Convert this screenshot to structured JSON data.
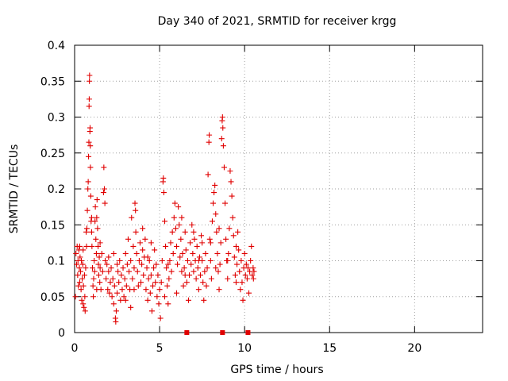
{
  "chart_data": {
    "type": "scatter",
    "title": "Day 340 of 2021, SRMTID for receiver krgg",
    "xlabel": "GPS time / hours",
    "ylabel": "SRMTID / TECUs",
    "xlim": [
      0,
      24
    ],
    "ylim": [
      0,
      0.4
    ],
    "x_ticks": [
      0,
      5,
      10,
      15,
      20
    ],
    "y_ticks": [
      0,
      0.05,
      0.1,
      0.15,
      0.2,
      0.25,
      0.3,
      0.35,
      0.4
    ],
    "x_tick_labels": [
      "0",
      "5",
      "10",
      "15",
      "20"
    ],
    "y_tick_labels": [
      "0",
      "0.05",
      "0.1",
      "0.15",
      "0.2",
      "0.25",
      "0.3",
      "0.35",
      "0.4"
    ],
    "grid": true,
    "marker": "plus",
    "color": "#e00000",
    "series": [
      {
        "name": "SRMTID",
        "points": [
          [
            0.05,
            0.05
          ],
          [
            0.08,
            0.11
          ],
          [
            0.12,
            0.095
          ],
          [
            0.15,
            0.12
          ],
          [
            0.18,
            0.08
          ],
          [
            0.2,
            0.1
          ],
          [
            0.22,
            0.065
          ],
          [
            0.25,
            0.115
          ],
          [
            0.28,
            0.09
          ],
          [
            0.3,
            0.07
          ],
          [
            0.32,
            0.105
          ],
          [
            0.35,
            0.085
          ],
          [
            0.38,
            0.06
          ],
          [
            0.4,
            0.1
          ],
          [
            0.42,
            0.045
          ],
          [
            0.45,
            0.075
          ],
          [
            0.48,
            0.095
          ],
          [
            0.5,
            0.04
          ],
          [
            0.52,
            0.065
          ],
          [
            0.55,
            0.035
          ],
          [
            0.58,
            0.08
          ],
          [
            0.6,
            0.05
          ],
          [
            0.62,
            0.03
          ],
          [
            0.65,
            0.09
          ],
          [
            0.68,
            0.14
          ],
          [
            0.7,
            0.12
          ],
          [
            0.72,
            0.145
          ],
          [
            0.75,
            0.17
          ],
          [
            0.78,
            0.2
          ],
          [
            0.8,
            0.21
          ],
          [
            0.82,
            0.245
          ],
          [
            0.84,
            0.265
          ],
          [
            0.85,
            0.315
          ],
          [
            0.86,
            0.325
          ],
          [
            0.87,
            0.35
          ],
          [
            0.88,
            0.358
          ],
          [
            0.9,
            0.28
          ],
          [
            0.91,
            0.285
          ],
          [
            0.92,
            0.26
          ],
          [
            0.93,
            0.23
          ],
          [
            0.95,
            0.19
          ],
          [
            0.97,
            0.155
          ],
          [
            1.0,
            0.14
          ],
          [
            1.02,
            0.12
          ],
          [
            1.05,
            0.09
          ],
          [
            1.08,
            0.065
          ],
          [
            1.1,
            0.05
          ],
          [
            1.12,
            0.075
          ],
          [
            1.15,
            0.1
          ],
          [
            1.18,
            0.085
          ],
          [
            1.2,
            0.155
          ],
          [
            1.22,
            0.175
          ],
          [
            1.25,
            0.13
          ],
          [
            1.28,
            0.11
          ],
          [
            1.3,
            0.16
          ],
          [
            1.32,
            0.185
          ],
          [
            1.35,
            0.145
          ],
          [
            1.38,
            0.12
          ],
          [
            1.4,
            0.095
          ],
          [
            1.42,
            0.08
          ],
          [
            1.45,
            0.105
          ],
          [
            1.48,
            0.07
          ],
          [
            1.5,
            0.09
          ],
          [
            1.55,
            0.06
          ],
          [
            1.6,
            0.11
          ],
          [
            1.65,
            0.085
          ],
          [
            1.7,
            0.195
          ],
          [
            1.72,
            0.23
          ],
          [
            1.75,
            0.2
          ],
          [
            1.78,
            0.18
          ],
          [
            1.8,
            0.1
          ],
          [
            1.85,
            0.075
          ],
          [
            1.9,
            0.095
          ],
          [
            1.95,
            0.06
          ],
          [
            2.0,
            0.085
          ],
          [
            2.05,
            0.055
          ],
          [
            2.1,
            0.07
          ],
          [
            2.15,
            0.09
          ],
          [
            2.2,
            0.05
          ],
          [
            2.25,
            0.075
          ],
          [
            2.3,
            0.04
          ],
          [
            2.35,
            0.065
          ],
          [
            2.4,
            0.02
          ],
          [
            2.42,
            0.015
          ],
          [
            2.45,
            0.03
          ],
          [
            2.5,
            0.055
          ],
          [
            2.55,
            0.085
          ],
          [
            2.6,
            0.07
          ],
          [
            2.65,
            0.1
          ],
          [
            2.7,
            0.045
          ],
          [
            2.75,
            0.08
          ],
          [
            2.8,
            0.06
          ],
          [
            2.85,
            0.09
          ],
          [
            2.9,
            0.05
          ],
          [
            2.95,
            0.075
          ],
          [
            3.0,
            0.11
          ],
          [
            3.05,
            0.065
          ],
          [
            3.1,
            0.095
          ],
          [
            3.15,
            0.13
          ],
          [
            3.2,
            0.085
          ],
          [
            3.25,
            0.06
          ],
          [
            3.3,
            0.1
          ],
          [
            3.35,
            0.16
          ],
          [
            3.4,
            0.075
          ],
          [
            3.45,
            0.12
          ],
          [
            3.5,
            0.09
          ],
          [
            3.55,
            0.18
          ],
          [
            3.58,
            0.17
          ],
          [
            3.6,
            0.14
          ],
          [
            3.65,
            0.11
          ],
          [
            3.7,
            0.085
          ],
          [
            3.75,
            0.065
          ],
          [
            3.8,
            0.1
          ],
          [
            3.85,
            0.125
          ],
          [
            3.9,
            0.07
          ],
          [
            3.95,
            0.095
          ],
          [
            4.0,
            0.115
          ],
          [
            4.05,
            0.08
          ],
          [
            4.1,
            0.105
          ],
          [
            4.15,
            0.13
          ],
          [
            4.2,
            0.06
          ],
          [
            4.25,
            0.09
          ],
          [
            4.3,
            0.045
          ],
          [
            4.35,
            0.075
          ],
          [
            4.4,
            0.1
          ],
          [
            4.45,
            0.055
          ],
          [
            4.5,
            0.08
          ],
          [
            4.55,
            0.03
          ],
          [
            4.6,
            0.065
          ],
          [
            4.65,
            0.09
          ],
          [
            4.7,
            0.115
          ],
          [
            4.75,
            0.07
          ],
          [
            4.8,
            0.095
          ],
          [
            4.85,
            0.05
          ],
          [
            4.9,
            0.08
          ],
          [
            4.95,
            0.04
          ],
          [
            5.0,
            0.06
          ],
          [
            5.05,
            0.02
          ],
          [
            5.1,
            0.07
          ],
          [
            5.15,
            0.1
          ],
          [
            5.2,
            0.21
          ],
          [
            5.22,
            0.215
          ],
          [
            5.25,
            0.195
          ],
          [
            5.3,
            0.155
          ],
          [
            5.35,
            0.12
          ],
          [
            5.4,
            0.09
          ],
          [
            5.45,
            0.065
          ],
          [
            5.5,
            0.04
          ],
          [
            5.55,
            0.075
          ],
          [
            5.6,
            0.1
          ],
          [
            5.65,
            0.125
          ],
          [
            5.7,
            0.085
          ],
          [
            5.75,
            0.14
          ],
          [
            5.8,
            0.11
          ],
          [
            5.85,
            0.16
          ],
          [
            5.9,
            0.18
          ],
          [
            5.95,
            0.145
          ],
          [
            6.0,
            0.12
          ],
          [
            6.05,
            0.095
          ],
          [
            6.1,
            0.175
          ],
          [
            6.15,
            0.15
          ],
          [
            6.2,
            0.105
          ],
          [
            6.25,
            0.13
          ],
          [
            6.3,
            0.085
          ],
          [
            6.35,
            0.11
          ],
          [
            6.4,
            0.065
          ],
          [
            6.45,
            0.09
          ],
          [
            6.5,
            0.14
          ],
          [
            6.55,
            0.115
          ],
          [
            6.6,
            0.07
          ],
          [
            6.65,
            0.1
          ],
          [
            6.7,
            0.045
          ],
          [
            6.75,
            0.08
          ],
          [
            6.8,
            0.125
          ],
          [
            6.85,
            0.095
          ],
          [
            6.9,
            0.15
          ],
          [
            6.95,
            0.11
          ],
          [
            7.0,
            0.085
          ],
          [
            7.05,
            0.13
          ],
          [
            7.1,
            0.1
          ],
          [
            7.15,
            0.075
          ],
          [
            7.2,
            0.12
          ],
          [
            7.25,
            0.09
          ],
          [
            7.3,
            0.06
          ],
          [
            7.35,
            0.105
          ],
          [
            7.4,
            0.08
          ],
          [
            7.45,
            0.135
          ],
          [
            7.5,
            0.1
          ],
          [
            7.55,
            0.07
          ],
          [
            7.6,
            0.045
          ],
          [
            7.65,
            0.085
          ],
          [
            7.7,
            0.11
          ],
          [
            7.75,
            0.065
          ],
          [
            7.8,
            0.09
          ],
          [
            7.85,
            0.22
          ],
          [
            7.9,
            0.265
          ],
          [
            7.92,
            0.275
          ],
          [
            7.95,
            0.13
          ],
          [
            8.0,
            0.1
          ],
          [
            8.05,
            0.075
          ],
          [
            8.1,
            0.155
          ],
          [
            8.15,
            0.18
          ],
          [
            8.2,
            0.195
          ],
          [
            8.25,
            0.205
          ],
          [
            8.3,
            0.165
          ],
          [
            8.35,
            0.14
          ],
          [
            8.4,
            0.11
          ],
          [
            8.45,
            0.085
          ],
          [
            8.5,
            0.06
          ],
          [
            8.55,
            0.095
          ],
          [
            8.6,
            0.125
          ],
          [
            8.65,
            0.27
          ],
          [
            8.68,
            0.295
          ],
          [
            8.7,
            0.3
          ],
          [
            8.72,
            0.285
          ],
          [
            8.75,
            0.26
          ],
          [
            8.8,
            0.23
          ],
          [
            8.85,
            0.18
          ],
          [
            8.9,
            0.13
          ],
          [
            8.95,
            0.1
          ],
          [
            9.0,
            0.075
          ],
          [
            9.05,
            0.11
          ],
          [
            9.1,
            0.145
          ],
          [
            9.15,
            0.225
          ],
          [
            9.2,
            0.21
          ],
          [
            9.25,
            0.19
          ],
          [
            9.3,
            0.16
          ],
          [
            9.35,
            0.135
          ],
          [
            9.4,
            0.105
          ],
          [
            9.45,
            0.08
          ],
          [
            9.5,
            0.12
          ],
          [
            9.55,
            0.095
          ],
          [
            9.6,
            0.14
          ],
          [
            9.65,
            0.115
          ],
          [
            9.7,
            0.085
          ],
          [
            9.75,
            0.06
          ],
          [
            9.8,
            0.1
          ],
          [
            9.85,
            0.07
          ],
          [
            9.9,
            0.045
          ],
          [
            9.95,
            0.09
          ],
          [
            10.0,
            0.11
          ],
          [
            10.05,
            0.08
          ],
          [
            10.1,
            0.095
          ],
          [
            10.15,
            0.075
          ],
          [
            10.2,
            0.09
          ],
          [
            10.25,
            0.055
          ],
          [
            10.3,
            0.085
          ],
          [
            10.35,
            0.1
          ],
          [
            10.4,
            0.12
          ],
          [
            10.45,
            0.08
          ],
          [
            10.5,
            0.09
          ],
          [
            10.52,
            0.075
          ],
          [
            10.55,
            0.085
          ],
          [
            1.0,
            0.16
          ],
          [
            2.0,
            0.105
          ],
          [
            3.0,
            0.045
          ],
          [
            4.0,
            0.145
          ],
          [
            6.0,
            0.055
          ],
          [
            7.0,
            0.14
          ],
          [
            8.0,
            0.125
          ],
          [
            9.0,
            0.1
          ],
          [
            0.5,
            0.115
          ],
          [
            1.5,
            0.125
          ],
          [
            2.5,
            0.095
          ],
          [
            3.5,
            0.06
          ],
          [
            4.5,
            0.125
          ],
          [
            5.5,
            0.095
          ],
          [
            6.5,
            0.08
          ],
          [
            7.5,
            0.125
          ],
          [
            8.5,
            0.145
          ],
          [
            9.5,
            0.07
          ],
          [
            0.3,
            0.12
          ],
          [
            1.3,
            0.06
          ],
          [
            2.3,
            0.11
          ],
          [
            3.3,
            0.035
          ],
          [
            4.3,
            0.105
          ],
          [
            5.3,
            0.05
          ],
          [
            6.3,
            0.16
          ],
          [
            7.3,
            0.1
          ],
          [
            8.3,
            0.09
          ]
        ]
      },
      {
        "name": "zero-markers",
        "points": [
          [
            6.6,
            0
          ],
          [
            8.7,
            0
          ],
          [
            10.2,
            0
          ]
        ]
      }
    ]
  }
}
